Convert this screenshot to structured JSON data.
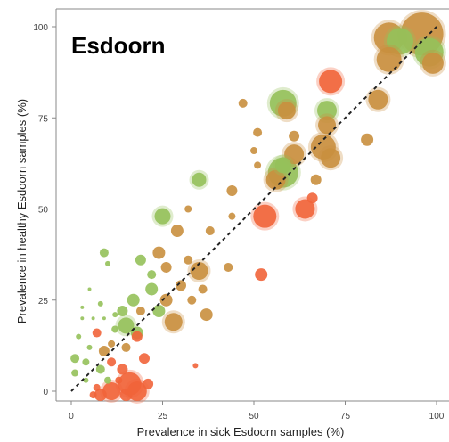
{
  "chart_data": {
    "type": "scatter",
    "title": "Esdoorn",
    "xlabel": "Prevalence in sick Esdoorn samples (%)",
    "ylabel": "Prevalence in healthy Esdoorn samples (%)",
    "xlim": [
      -3,
      101
    ],
    "ylim": [
      -3,
      101
    ],
    "xticks": [
      "0",
      "25",
      "50",
      "75",
      "100"
    ],
    "yticks": [
      "0",
      "25",
      "50",
      "75",
      "100"
    ],
    "grid": false,
    "legend": "none",
    "reference_line": "y = x",
    "colors": {
      "healthy": "#95c15a",
      "sick": "#f1643a",
      "mixed": "#c98f3e"
    },
    "points": [
      {
        "x": 96,
        "y": 98,
        "r": 24,
        "c": "mixed"
      },
      {
        "x": 98,
        "y": 93,
        "r": 16,
        "c": "healthy"
      },
      {
        "x": 87,
        "y": 97,
        "r": 17,
        "c": "mixed"
      },
      {
        "x": 90,
        "y": 96,
        "r": 15,
        "c": "healthy"
      },
      {
        "x": 87,
        "y": 91,
        "r": 14,
        "c": "mixed"
      },
      {
        "x": 99,
        "y": 90,
        "r": 12,
        "c": "mixed"
      },
      {
        "x": 71,
        "y": 85,
        "r": 13,
        "c": "sick"
      },
      {
        "x": 84,
        "y": 80,
        "r": 11,
        "c": "mixed"
      },
      {
        "x": 58,
        "y": 79,
        "r": 15,
        "c": "healthy"
      },
      {
        "x": 59,
        "y": 77,
        "r": 10,
        "c": "mixed"
      },
      {
        "x": 70,
        "y": 77,
        "r": 11,
        "c": "healthy"
      },
      {
        "x": 70,
        "y": 73,
        "r": 10,
        "c": "mixed"
      },
      {
        "x": 47,
        "y": 79,
        "r": 5,
        "c": "mixed"
      },
      {
        "x": 61,
        "y": 70,
        "r": 6,
        "c": "mixed"
      },
      {
        "x": 51,
        "y": 71,
        "r": 5,
        "c": "mixed"
      },
      {
        "x": 50,
        "y": 66,
        "r": 4,
        "c": "mixed"
      },
      {
        "x": 51,
        "y": 62,
        "r": 4,
        "c": "mixed"
      },
      {
        "x": 69,
        "y": 67,
        "r": 14,
        "c": "mixed"
      },
      {
        "x": 71,
        "y": 64,
        "r": 11,
        "c": "mixed"
      },
      {
        "x": 81,
        "y": 69,
        "r": 7,
        "c": "mixed"
      },
      {
        "x": 61,
        "y": 65,
        "r": 11,
        "c": "mixed"
      },
      {
        "x": 58,
        "y": 60,
        "r": 17,
        "c": "healthy"
      },
      {
        "x": 56,
        "y": 58,
        "r": 11,
        "c": "mixed"
      },
      {
        "x": 58,
        "y": 62,
        "r": 9,
        "c": "healthy"
      },
      {
        "x": 67,
        "y": 58,
        "r": 6,
        "c": "mixed"
      },
      {
        "x": 66,
        "y": 53,
        "r": 6,
        "c": "sick"
      },
      {
        "x": 44,
        "y": 55,
        "r": 6,
        "c": "mixed"
      },
      {
        "x": 35,
        "y": 58,
        "r": 8,
        "c": "healthy"
      },
      {
        "x": 53,
        "y": 48,
        "r": 13,
        "c": "sick"
      },
      {
        "x": 64,
        "y": 50,
        "r": 11,
        "c": "sick"
      },
      {
        "x": 25,
        "y": 48,
        "r": 9,
        "c": "healthy"
      },
      {
        "x": 32,
        "y": 50,
        "r": 4,
        "c": "mixed"
      },
      {
        "x": 29,
        "y": 44,
        "r": 7,
        "c": "mixed"
      },
      {
        "x": 44,
        "y": 48,
        "r": 4,
        "c": "mixed"
      },
      {
        "x": 38,
        "y": 44,
        "r": 5,
        "c": "mixed"
      },
      {
        "x": 24,
        "y": 38,
        "r": 7,
        "c": "mixed"
      },
      {
        "x": 19,
        "y": 36,
        "r": 6,
        "c": "healthy"
      },
      {
        "x": 32,
        "y": 36,
        "r": 5,
        "c": "mixed"
      },
      {
        "x": 35,
        "y": 33,
        "r": 10,
        "c": "mixed"
      },
      {
        "x": 26,
        "y": 34,
        "r": 6,
        "c": "mixed"
      },
      {
        "x": 22,
        "y": 32,
        "r": 5,
        "c": "healthy"
      },
      {
        "x": 43,
        "y": 34,
        "r": 5,
        "c": "mixed"
      },
      {
        "x": 52,
        "y": 32,
        "r": 7,
        "c": "sick"
      },
      {
        "x": 30,
        "y": 29,
        "r": 6,
        "c": "mixed"
      },
      {
        "x": 22,
        "y": 28,
        "r": 7,
        "c": "healthy"
      },
      {
        "x": 9,
        "y": 38,
        "r": 5,
        "c": "healthy"
      },
      {
        "x": 10,
        "y": 35,
        "r": 3,
        "c": "healthy"
      },
      {
        "x": 26,
        "y": 25,
        "r": 7,
        "c": "mixed"
      },
      {
        "x": 33,
        "y": 25,
        "r": 5,
        "c": "mixed"
      },
      {
        "x": 37,
        "y": 21,
        "r": 7,
        "c": "mixed"
      },
      {
        "x": 36,
        "y": 28,
        "r": 5,
        "c": "mixed"
      },
      {
        "x": 28,
        "y": 19,
        "r": 10,
        "c": "mixed"
      },
      {
        "x": 24,
        "y": 22,
        "r": 7,
        "c": "healthy"
      },
      {
        "x": 34,
        "y": 7,
        "r": 3,
        "c": "sick"
      },
      {
        "x": 17,
        "y": 25,
        "r": 7,
        "c": "healthy"
      },
      {
        "x": 14,
        "y": 22,
        "r": 6,
        "c": "healthy"
      },
      {
        "x": 19,
        "y": 22,
        "r": 5,
        "c": "mixed"
      },
      {
        "x": 15,
        "y": 18,
        "r": 9,
        "c": "healthy"
      },
      {
        "x": 18,
        "y": 16,
        "r": 7,
        "c": "healthy"
      },
      {
        "x": 18,
        "y": 15,
        "r": 6,
        "c": "sick"
      },
      {
        "x": 12,
        "y": 17,
        "r": 4,
        "c": "healthy"
      },
      {
        "x": 8,
        "y": 24,
        "r": 3,
        "c": "healthy"
      },
      {
        "x": 5,
        "y": 28,
        "r": 2,
        "c": "healthy"
      },
      {
        "x": 3,
        "y": 23,
        "r": 2,
        "c": "healthy"
      },
      {
        "x": 3,
        "y": 20,
        "r": 2,
        "c": "healthy"
      },
      {
        "x": 6,
        "y": 20,
        "r": 2,
        "c": "healthy"
      },
      {
        "x": 9,
        "y": 20,
        "r": 2,
        "c": "healthy"
      },
      {
        "x": 12,
        "y": 21,
        "r": 3,
        "c": "healthy"
      },
      {
        "x": 7,
        "y": 16,
        "r": 5,
        "c": "sick"
      },
      {
        "x": 11,
        "y": 13,
        "r": 4,
        "c": "mixed"
      },
      {
        "x": 15,
        "y": 12,
        "r": 5,
        "c": "mixed"
      },
      {
        "x": 9,
        "y": 11,
        "r": 6,
        "c": "mixed"
      },
      {
        "x": 5,
        "y": 12,
        "r": 3,
        "c": "healthy"
      },
      {
        "x": 2,
        "y": 15,
        "r": 3,
        "c": "healthy"
      },
      {
        "x": 1,
        "y": 9,
        "r": 5,
        "c": "healthy"
      },
      {
        "x": 1,
        "y": 5,
        "r": 4,
        "c": "healthy"
      },
      {
        "x": 4,
        "y": 8,
        "r": 4,
        "c": "healthy"
      },
      {
        "x": 8,
        "y": 6,
        "r": 5,
        "c": "healthy"
      },
      {
        "x": 11,
        "y": 8,
        "r": 5,
        "c": "sick"
      },
      {
        "x": 14,
        "y": 6,
        "r": 6,
        "c": "sick"
      },
      {
        "x": 20,
        "y": 9,
        "r": 6,
        "c": "sick"
      },
      {
        "x": 10,
        "y": 3,
        "r": 4,
        "c": "healthy"
      },
      {
        "x": 4,
        "y": 3,
        "r": 3,
        "c": "healthy"
      },
      {
        "x": 7,
        "y": 1,
        "r": 4,
        "c": "sick"
      },
      {
        "x": 11,
        "y": 0,
        "r": 10,
        "c": "sick"
      },
      {
        "x": 8,
        "y": -1,
        "r": 7,
        "c": "sick"
      },
      {
        "x": 16,
        "y": 2,
        "r": 13,
        "c": "sick"
      },
      {
        "x": 18,
        "y": 0,
        "r": 11,
        "c": "sick"
      },
      {
        "x": 15,
        "y": -1,
        "r": 7,
        "c": "sick"
      },
      {
        "x": 21,
        "y": 2,
        "r": 6,
        "c": "sick"
      },
      {
        "x": 13,
        "y": 3,
        "r": 4,
        "c": "sick"
      },
      {
        "x": 6,
        "y": -1,
        "r": 4,
        "c": "sick"
      }
    ]
  }
}
